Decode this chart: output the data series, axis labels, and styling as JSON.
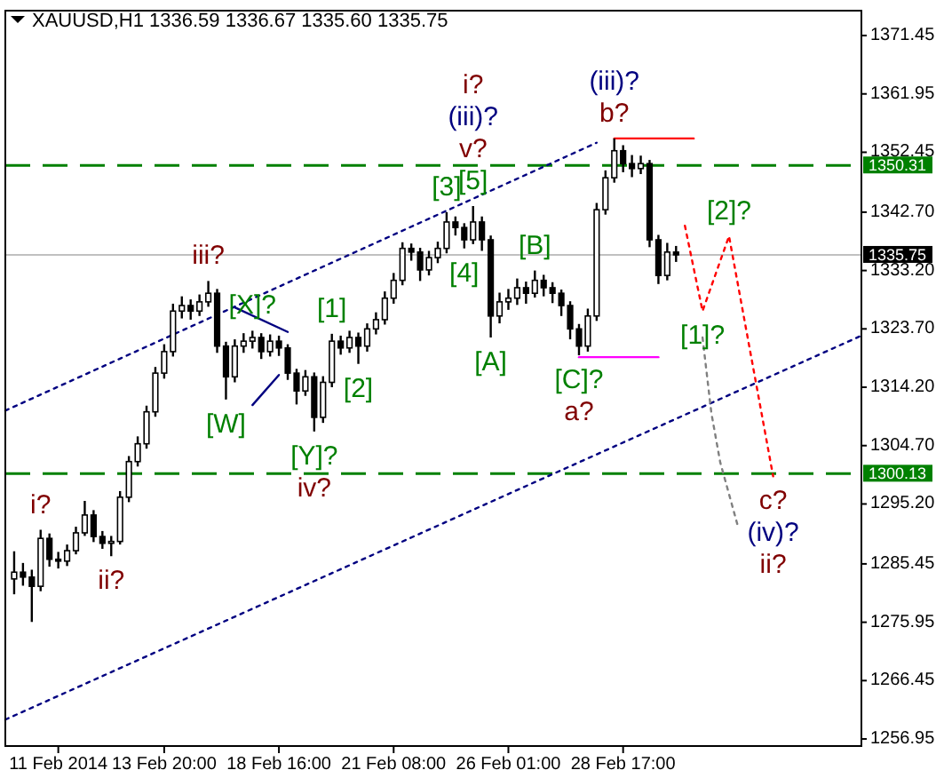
{
  "chart_data": {
    "type": "candlestick",
    "title": "XAUUSD,H1  1336.59 1336.67 1335.60 1335.75",
    "color": "#000000",
    "ylim": [
      1255.8,
      1375.5
    ],
    "yticks": [
      1256.95,
      1266.45,
      1275.95,
      1285.45,
      {
        "value": 1295.2,
        "label": "1295.20"
      },
      {
        "value": 1304.7,
        "label": "1304.70"
      },
      {
        "value": 1314.2,
        "label": "1314.20"
      },
      {
        "value": 1323.7,
        "label": "1323.70"
      },
      {
        "value": 1333.2,
        "label": "1333.20"
      },
      {
        "value": 1342.7,
        "label": "1342.70"
      },
      1352.45,
      1361.95,
      1371.45
    ],
    "categories": [
      null,
      null,
      null,
      null,
      null,
      null,
      "11 Feb 2014",
      null,
      null,
      null,
      null,
      null,
      null,
      null,
      null,
      null,
      null,
      null,
      "13 Feb 20:00",
      null,
      null,
      null,
      null,
      null,
      null,
      null,
      null,
      null,
      null,
      null,
      null,
      "18 Feb 16:00",
      null,
      null,
      null,
      null,
      null,
      null,
      null,
      null,
      null,
      null,
      null,
      null,
      "21 Feb 08:00",
      null,
      null,
      null,
      null,
      null,
      null,
      null,
      null,
      null,
      null,
      null,
      null,
      "26 Feb 01:00",
      null,
      null,
      null,
      null,
      null,
      null,
      null,
      null,
      null,
      null,
      null,
      null,
      "28 Feb 17:00",
      null,
      null,
      null,
      null,
      null,
      null,
      null,
      null,
      null,
      null,
      null,
      null,
      null,
      null,
      null,
      null,
      null,
      null,
      null,
      null,
      null,
      null,
      null,
      null,
      null,
      null,
      null
    ],
    "ohlc": [
      null,
      [
        1283.0,
        1287.5,
        1280.5,
        1284.1
      ],
      [
        1284.1,
        1285.6,
        1281.9,
        1283.3
      ],
      [
        1283.3,
        1284.5,
        1276.0,
        1281.8
      ],
      [
        1281.8,
        1291.0,
        1281.0,
        1289.6
      ],
      [
        1289.6,
        1290.4,
        1285.0,
        1286.2
      ],
      [
        1286.2,
        1287.4,
        1284.7,
        1285.9
      ],
      [
        1285.9,
        1288.6,
        1285.1,
        1287.6
      ],
      [
        1287.6,
        1291.5,
        1287.0,
        1290.5
      ],
      [
        1290.5,
        1295.7,
        1290.0,
        1293.4
      ],
      [
        1293.4,
        1294.2,
        1289.0,
        1289.9
      ],
      [
        1289.9,
        1290.8,
        1287.9,
        1288.8
      ],
      [
        1288.8,
        1290.0,
        1286.7,
        1289.1
      ],
      [
        1289.1,
        1297.3,
        1288.6,
        1296.3
      ],
      [
        1296.3,
        1303.0,
        1295.5,
        1302.1
      ],
      [
        1302.1,
        1306.2,
        1301.3,
        1305.0
      ],
      [
        1305.0,
        1311.2,
        1304.2,
        1310.2
      ],
      [
        1310.2,
        1317.5,
        1309.4,
        1316.5
      ],
      [
        1316.5,
        1321.2,
        1315.6,
        1320.0
      ],
      [
        1320.0,
        1327.8,
        1319.2,
        1326.6
      ],
      [
        1326.6,
        1329.0,
        1325.4,
        1327.5
      ],
      [
        1327.5,
        1328.5,
        1325.2,
        1326.6
      ],
      [
        1326.6,
        1329.3,
        1325.8,
        1328.1
      ],
      [
        1328.1,
        1331.5,
        1327.3,
        1329.5
      ],
      [
        1329.5,
        1330.2,
        1319.8,
        1320.9
      ],
      [
        1320.9,
        1321.6,
        1312.2,
        1315.9
      ],
      [
        1315.9,
        1322.0,
        1315.0,
        1320.9
      ],
      [
        1320.9,
        1323.0,
        1319.8,
        1321.7
      ],
      [
        1321.7,
        1323.4,
        1320.5,
        1322.3
      ],
      [
        1322.3,
        1323.0,
        1318.8,
        1320.0
      ],
      [
        1320.0,
        1322.8,
        1319.2,
        1321.7
      ],
      [
        1321.7,
        1322.6,
        1319.3,
        1320.6
      ],
      [
        1320.6,
        1321.2,
        1315.4,
        1316.5
      ],
      [
        1316.5,
        1317.2,
        1311.4,
        1313.6
      ],
      [
        1313.6,
        1317.0,
        1312.8,
        1315.9
      ],
      [
        1315.9,
        1316.6,
        1307.0,
        1309.3
      ],
      [
        1309.3,
        1316.0,
        1308.4,
        1315.0
      ],
      [
        1315.0,
        1322.9,
        1314.2,
        1321.7
      ],
      [
        1321.7,
        1322.6,
        1319.5,
        1320.6
      ],
      [
        1320.6,
        1323.4,
        1319.8,
        1322.3
      ],
      [
        1322.3,
        1323.1,
        1318.0,
        1320.9
      ],
      [
        1320.9,
        1324.6,
        1320.0,
        1323.7
      ],
      [
        1323.7,
        1326.4,
        1322.8,
        1325.2
      ],
      [
        1325.2,
        1329.8,
        1324.4,
        1328.7
      ],
      [
        1328.7,
        1332.8,
        1327.8,
        1331.6
      ],
      [
        1331.6,
        1337.8,
        1330.8,
        1336.8
      ],
      [
        1336.8,
        1337.6,
        1334.8,
        1336.2
      ],
      [
        1336.2,
        1336.9,
        1331.5,
        1333.3
      ],
      [
        1333.3,
        1336.4,
        1332.4,
        1335.3
      ],
      [
        1335.3,
        1337.9,
        1334.4,
        1336.8
      ],
      [
        1336.8,
        1342.7,
        1336.0,
        1341.1
      ],
      [
        1341.1,
        1342.0,
        1338.9,
        1340.2
      ],
      [
        1340.2,
        1340.9,
        1336.8,
        1338.2
      ],
      [
        1338.2,
        1343.7,
        1337.5,
        1341.1
      ],
      [
        1341.1,
        1342.0,
        1336.4,
        1338.2
      ],
      [
        1338.2,
        1338.9,
        1322.3,
        1325.8
      ],
      [
        1325.8,
        1329.6,
        1324.6,
        1328.1
      ],
      [
        1328.1,
        1330.2,
        1326.8,
        1328.7
      ],
      [
        1328.7,
        1331.9,
        1327.6,
        1330.4
      ],
      [
        1330.4,
        1331.4,
        1327.8,
        1329.5
      ],
      [
        1329.5,
        1333.2,
        1328.8,
        1331.6
      ],
      [
        1331.6,
        1332.5,
        1329.0,
        1330.4
      ],
      [
        1330.4,
        1331.3,
        1327.9,
        1329.5
      ],
      [
        1329.5,
        1330.1,
        1325.8,
        1327.5
      ],
      [
        1327.5,
        1328.2,
        1322.0,
        1323.7
      ],
      [
        1323.7,
        1324.5,
        1319.4,
        1320.9
      ],
      [
        1320.9,
        1327.0,
        1320.0,
        1325.8
      ],
      [
        1325.8,
        1344.2,
        1325.0,
        1343.1
      ],
      [
        1343.1,
        1349.5,
        1342.3,
        1348.3
      ],
      [
        1348.3,
        1354.7,
        1347.5,
        1352.7
      ],
      [
        1352.7,
        1353.6,
        1349.2,
        1350.6
      ],
      [
        1350.6,
        1352.0,
        1348.4,
        1349.8
      ],
      [
        1349.8,
        1351.9,
        1348.9,
        1350.6
      ],
      [
        1350.6,
        1351.2,
        1337.0,
        1338.2
      ],
      [
        1338.2,
        1339.0,
        1331.0,
        1332.4
      ],
      [
        1332.4,
        1337.7,
        1331.6,
        1336.2
      ],
      [
        1336.2,
        1337.2,
        1334.6,
        1335.75
      ],
      null,
      null,
      null,
      null,
      null,
      null,
      null,
      null,
      null,
      null,
      null,
      null,
      null,
      null,
      null,
      null,
      null,
      null,
      null,
      null,
      null
    ],
    "series": [
      {
        "type": "line",
        "color": "#000080",
        "line_style": "dotted",
        "values": [
          1310.4,
          null,
          null,
          null,
          null,
          null,
          null,
          null,
          null,
          null,
          null,
          null,
          null,
          null,
          null,
          null,
          null,
          null,
          null,
          null,
          null,
          null,
          null,
          null,
          null,
          null,
          null,
          null,
          null,
          null,
          null,
          null,
          null,
          null,
          null,
          null,
          null,
          null,
          null,
          null,
          null,
          null,
          null,
          null,
          null,
          null,
          null,
          null,
          null,
          null,
          null,
          null,
          null,
          null,
          null,
          null,
          null,
          null,
          null,
          null,
          null,
          null,
          null,
          null,
          null,
          null,
          null,
          1354.0,
          null,
          null,
          null,
          null,
          null,
          null,
          null,
          null,
          null,
          null,
          null,
          null,
          null,
          null,
          null,
          null,
          null,
          null,
          null,
          null,
          null,
          null,
          null,
          null,
          null,
          null,
          null,
          null,
          null,
          null
        ]
      },
      {
        "type": "line",
        "color": "#000080",
        "line_style": "dotted",
        "values": [
          1260.1,
          null,
          null,
          null,
          null,
          null,
          null,
          null,
          null,
          null,
          null,
          null,
          null,
          null,
          null,
          null,
          null,
          null,
          null,
          null,
          null,
          null,
          null,
          null,
          null,
          null,
          null,
          null,
          null,
          null,
          null,
          null,
          null,
          null,
          null,
          null,
          null,
          null,
          null,
          null,
          null,
          null,
          null,
          null,
          null,
          null,
          null,
          null,
          null,
          null,
          null,
          null,
          null,
          null,
          null,
          null,
          null,
          null,
          null,
          null,
          null,
          null,
          null,
          null,
          null,
          null,
          null,
          null,
          null,
          null,
          null,
          null,
          null,
          null,
          null,
          null,
          null,
          null,
          null,
          null,
          null,
          null,
          null,
          null,
          null,
          null,
          null,
          null,
          null,
          null,
          null,
          null,
          null,
          null,
          null,
          null,
          null,
          1322.6
        ]
      },
      {
        "type": "line",
        "color": "#000080",
        "line_style": "solid",
        "values": [
          null,
          null,
          null,
          null,
          null,
          null,
          null,
          null,
          null,
          null,
          null,
          null,
          null,
          null,
          null,
          null,
          null,
          null,
          null,
          null,
          null,
          null,
          null,
          null,
          null,
          null,
          1327.2,
          null,
          null,
          null,
          null,
          null,
          1323.2,
          null,
          null,
          null,
          null,
          null,
          null,
          null,
          null,
          null,
          null,
          null,
          null,
          null,
          null,
          null,
          null,
          null,
          null,
          null,
          null,
          null,
          null,
          null,
          null,
          null,
          null,
          null,
          null,
          null,
          null,
          null,
          null,
          null,
          null,
          null,
          null,
          null,
          null,
          null,
          null,
          null,
          null,
          null,
          null,
          null,
          null,
          null,
          null,
          null,
          null,
          null,
          null,
          null,
          null,
          null,
          null,
          null,
          null,
          null,
          null,
          null,
          null,
          null,
          null,
          null
        ]
      },
      {
        "type": "line",
        "color": "#000080",
        "line_style": "solid",
        "values": [
          null,
          null,
          null,
          null,
          null,
          null,
          null,
          null,
          null,
          null,
          null,
          null,
          null,
          null,
          null,
          null,
          null,
          null,
          null,
          null,
          null,
          null,
          null,
          null,
          null,
          null,
          null,
          null,
          1311.3,
          null,
          null,
          1316.2,
          null,
          null,
          null,
          null,
          null,
          null,
          null,
          null,
          null,
          null,
          null,
          null,
          null,
          null,
          null,
          null,
          null,
          null,
          null,
          null,
          null,
          null,
          null,
          null,
          null,
          null,
          null,
          null,
          null,
          null,
          null,
          null,
          null,
          null,
          null,
          null,
          null,
          null,
          null,
          null,
          null,
          null,
          null,
          null,
          null,
          null,
          null,
          null,
          null,
          null,
          null,
          null,
          null,
          null,
          null,
          null,
          null,
          null,
          null,
          null,
          null,
          null,
          null,
          null,
          null,
          null
        ]
      },
      {
        "type": "line",
        "color": "#ff0000",
        "line_style": "solid",
        "values": [
          null,
          null,
          null,
          null,
          null,
          null,
          null,
          null,
          null,
          null,
          null,
          null,
          null,
          null,
          null,
          null,
          null,
          null,
          null,
          null,
          null,
          null,
          null,
          null,
          null,
          null,
          null,
          null,
          null,
          null,
          null,
          null,
          null,
          null,
          null,
          null,
          null,
          null,
          null,
          null,
          null,
          null,
          null,
          null,
          null,
          null,
          null,
          null,
          null,
          null,
          null,
          null,
          null,
          null,
          null,
          null,
          null,
          null,
          null,
          null,
          null,
          null,
          null,
          null,
          null,
          null,
          null,
          null,
          null,
          1354.7,
          null,
          null,
          null,
          null,
          null,
          null,
          null,
          null,
          1354.7,
          null,
          null,
          null,
          null,
          null,
          null,
          null,
          null,
          null,
          null,
          null,
          null,
          null,
          null,
          null,
          null,
          null,
          null,
          null
        ]
      },
      {
        "type": "line",
        "color": "#ff00ff",
        "line_style": "solid",
        "values": [
          null,
          null,
          null,
          null,
          null,
          null,
          null,
          null,
          null,
          null,
          null,
          null,
          null,
          null,
          null,
          null,
          null,
          null,
          null,
          null,
          null,
          null,
          null,
          null,
          null,
          null,
          null,
          null,
          null,
          null,
          null,
          null,
          null,
          null,
          null,
          null,
          null,
          null,
          null,
          null,
          null,
          null,
          null,
          null,
          null,
          null,
          null,
          null,
          null,
          null,
          null,
          null,
          null,
          null,
          null,
          null,
          null,
          null,
          null,
          null,
          null,
          null,
          null,
          null,
          null,
          1319.1,
          null,
          null,
          null,
          null,
          null,
          null,
          null,
          null,
          1319.1,
          null,
          null,
          null,
          null,
          null,
          null,
          null,
          null,
          null,
          null,
          null,
          null,
          null,
          null,
          null,
          null,
          null,
          null,
          null,
          null,
          null,
          null,
          null
        ]
      },
      {
        "type": "line",
        "color": "#ff0000",
        "line_style": "dotted",
        "values": [
          null,
          null,
          null,
          null,
          null,
          null,
          null,
          null,
          null,
          null,
          null,
          null,
          null,
          null,
          null,
          null,
          null,
          null,
          null,
          null,
          null,
          null,
          null,
          null,
          null,
          null,
          null,
          null,
          null,
          null,
          null,
          null,
          null,
          null,
          null,
          null,
          null,
          null,
          null,
          null,
          null,
          null,
          null,
          null,
          null,
          null,
          null,
          null,
          null,
          null,
          null,
          null,
          null,
          null,
          null,
          null,
          null,
          null,
          null,
          null,
          null,
          null,
          null,
          null,
          null,
          null,
          null,
          null,
          null,
          null,
          null,
          null,
          null,
          null,
          null,
          null,
          null,
          1340.5,
          null,
          1326.6,
          null,
          null,
          1338.8,
          null,
          null,
          null,
          null,
          1299.7,
          null,
          null,
          null,
          null,
          null,
          null,
          null,
          null,
          null,
          null
        ]
      },
      {
        "type": "line",
        "color": "#808080",
        "line_style": "dotted",
        "values": [
          null,
          null,
          null,
          null,
          null,
          null,
          null,
          null,
          null,
          null,
          null,
          null,
          null,
          null,
          null,
          null,
          null,
          null,
          null,
          null,
          null,
          null,
          null,
          null,
          null,
          null,
          null,
          null,
          null,
          null,
          null,
          null,
          null,
          null,
          null,
          null,
          null,
          null,
          null,
          null,
          null,
          null,
          null,
          null,
          null,
          null,
          null,
          null,
          null,
          null,
          null,
          null,
          null,
          null,
          null,
          null,
          null,
          null,
          null,
          null,
          null,
          null,
          null,
          null,
          null,
          null,
          null,
          null,
          null,
          null,
          null,
          null,
          null,
          null,
          null,
          null,
          null,
          null,
          null,
          1322.3,
          1310.0,
          1302.0,
          null,
          1291.6,
          null,
          null,
          null,
          null,
          null,
          null,
          null,
          null,
          null,
          null,
          null,
          null,
          null,
          null
        ]
      }
    ],
    "ref_lines": [
      {
        "axis": "y",
        "value": 1350.31,
        "label": "1350.31",
        "color": "#008000",
        "line_style": "dashed"
      },
      {
        "axis": "y",
        "value": 1300.13,
        "label": "1300.13",
        "color": "#008000",
        "line_style": "dashed"
      },
      {
        "axis": "y",
        "value": 1335.75,
        "label": "1335.75",
        "color": "#c0c0c0",
        "line_style": "solid"
      }
    ],
    "annotations": [
      {
        "text": "[5]",
        "y": 1343.7
      },
      {
        "text": "v?",
        "y": 1343.7
      },
      {
        "text": "(iii)?",
        "y": 1343.7
      },
      "i?",
      {
        "text": "[3]",
        "y": 1342.7
      },
      {
        "text": "b?",
        "y": 1354.7
      },
      {
        "text": "(iii)?",
        "y": 1354.7
      },
      {
        "text": "i?",
        "y": 1291.0
      },
      {
        "text": "ii?",
        "y": 1286.7
      },
      {
        "text": "iii?",
        "y": 1331.5
      },
      {
        "text": "[W]",
        "y": 1312.2
      },
      {
        "text": "[X]?",
        "y": 1323.4
      },
      {
        "text": "[Y]?",
        "y": 1307.0
      },
      {
        "text": "iv?",
        "y": 1307.0
      },
      {
        "text": "[1]",
        "y": 1322.9
      },
      {
        "text": "[2]",
        "y": 1318.0
      },
      {
        "text": "[4]",
        "y": 1336.8
      },
      {
        "text": "[A]",
        "y": 1322.3
      },
      {
        "text": "[B]",
        "y": 1333.2
      },
      {
        "text": "[C]?",
        "y": 1319.4
      },
      {
        "text": "a?",
        "y": 1319.4
      },
      {
        "text": "[1]?",
        "y": 1326.6
      },
      {
        "text": "[2]?",
        "y": 1338.8
      },
      {
        "text": "c?",
        "y": 1299.7
      },
      {
        "text": "(iv)?",
        "y": 1299.7
      },
      {
        "text": "ii?",
        "y": 1299.7
      }
    ]
  }
}
